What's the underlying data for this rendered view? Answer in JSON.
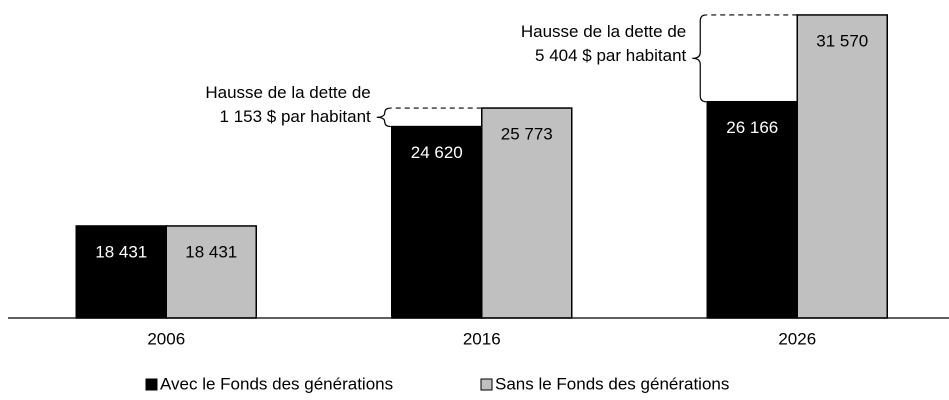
{
  "chart_data": {
    "type": "bar",
    "categories": [
      "2006",
      "2016",
      "2026"
    ],
    "series": [
      {
        "name": "Avec le Fonds des générations",
        "color": "#000000",
        "values": [
          18431,
          24620,
          26166
        ],
        "value_labels": [
          "18 431",
          "24 620",
          "26 166"
        ]
      },
      {
        "name": "Sans le Fonds des générations",
        "color": "#c0c0c0",
        "values": [
          18431,
          25773,
          31570
        ],
        "value_labels": [
          "18 431",
          "25 773",
          "31 570"
        ]
      }
    ],
    "ylim": [
      12700,
      32500
    ],
    "annotations": [
      {
        "lines": [
          "Hausse de la dette de",
          "1 153 $ par habitant"
        ]
      },
      {
        "lines": [
          "Hausse de la dette de",
          "5 404 $ par habitant"
        ]
      }
    ]
  }
}
